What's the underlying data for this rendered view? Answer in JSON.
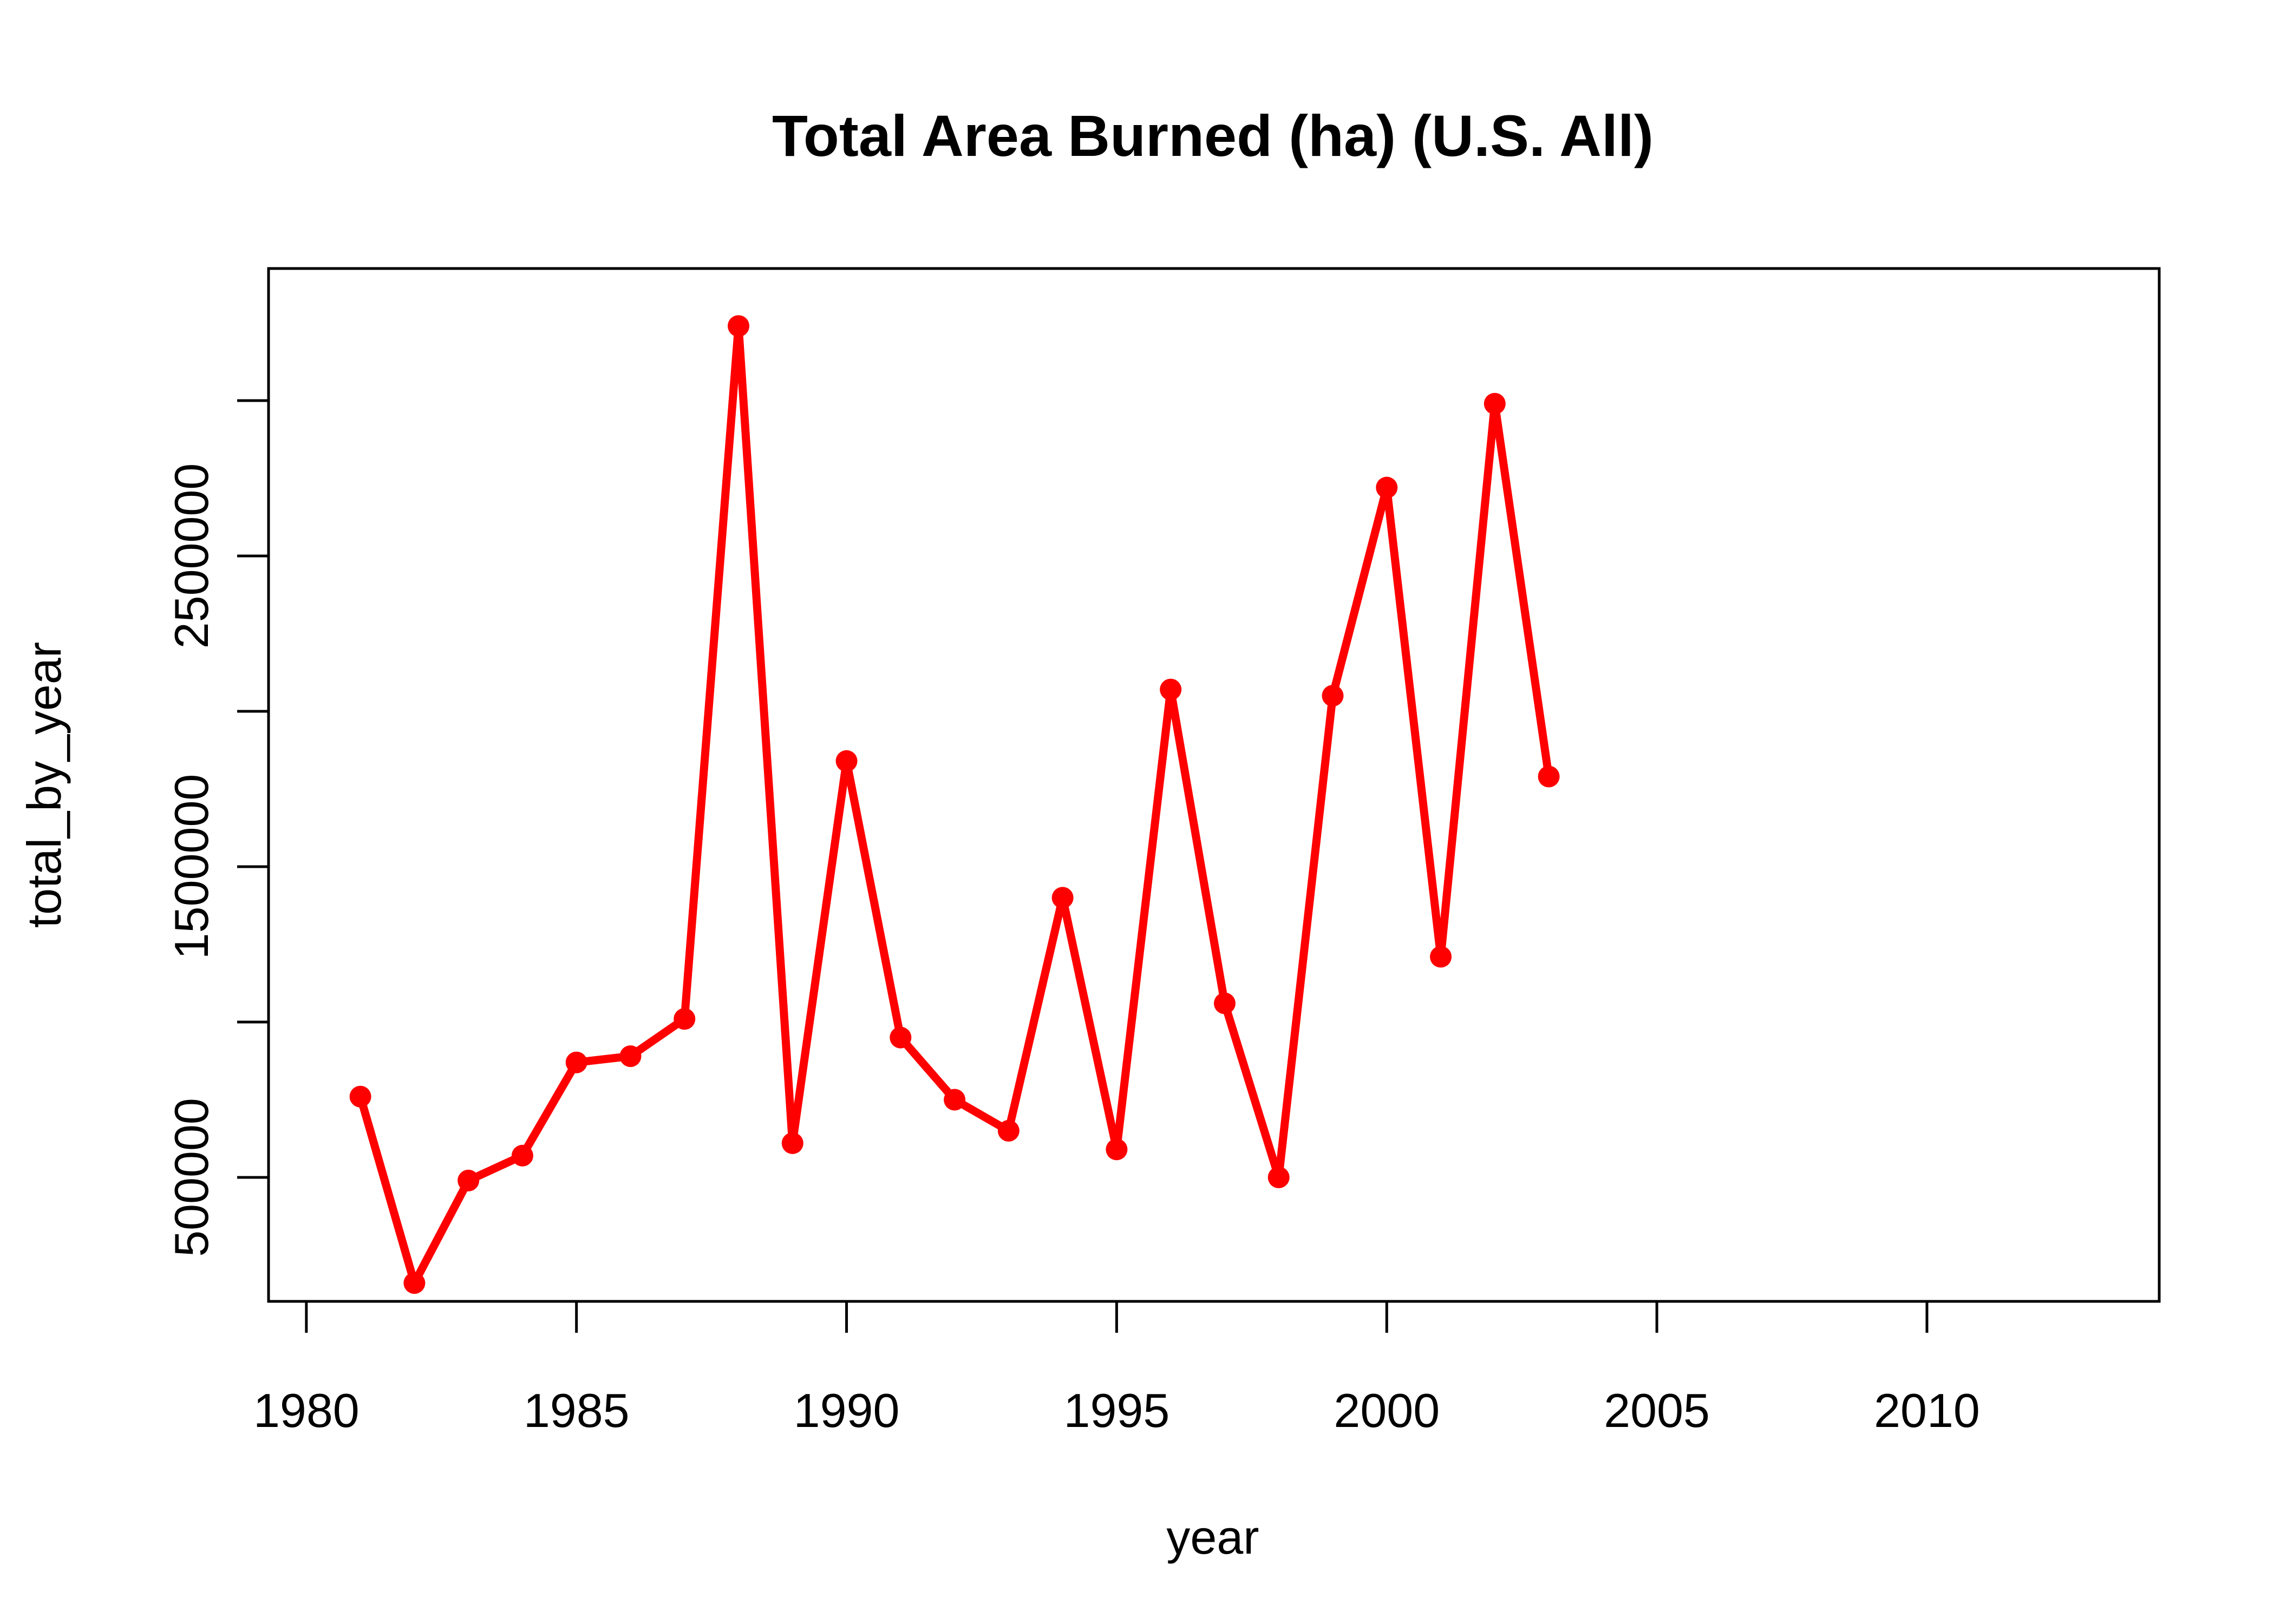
{
  "chart_data": {
    "type": "line",
    "title": "Total Area Burned (ha) (U.S. All)",
    "xlabel": "year",
    "ylabel": "total_by_year",
    "xlim": [
      1979.3,
      2014.3
    ],
    "ylim": [
      101000,
      3425000
    ],
    "x_ticks": [
      1980,
      1985,
      1990,
      1995,
      2000,
      2005,
      2010
    ],
    "y_ticks": [
      500000,
      1000000,
      1500000,
      2000000,
      2500000,
      3000000
    ],
    "y_tick_labels": [
      "500000",
      "",
      "1500000",
      "",
      "2500000",
      ""
    ],
    "grid": false,
    "legend": "none",
    "series": [
      {
        "color": "#ff0000",
        "x": [
          1981,
          1982,
          1983,
          1984,
          1985,
          1986,
          1987,
          1988,
          1989,
          1990,
          1991,
          1992,
          1993,
          1994,
          1995,
          1996,
          1997,
          1998,
          1999,
          2000,
          2001,
          2002,
          2003
        ],
        "y": [
          760000,
          160000,
          490000,
          570000,
          870000,
          890000,
          1010000,
          3240000,
          610000,
          1840000,
          950000,
          750000,
          650000,
          1400000,
          590000,
          2070000,
          1060000,
          500000,
          2050000,
          2720000,
          1210000,
          2990000,
          1790000
        ]
      }
    ]
  }
}
